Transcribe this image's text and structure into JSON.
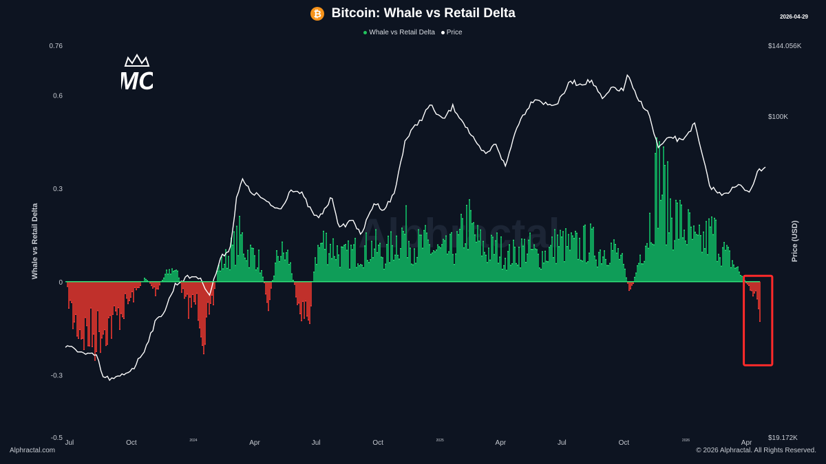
{
  "header": {
    "title": "Bitcoin: Whale vs Retail Delta",
    "date": "2026-04-29",
    "logo_letters": "MC"
  },
  "legend": [
    {
      "label": "Whale vs Retail Delta",
      "color": "#22c55e"
    },
    {
      "label": "Price",
      "color": "#ffffff"
    }
  ],
  "footer": {
    "left": "Alphractal.com",
    "right": "© 2026 Alphractal. All Rights Reserved."
  },
  "watermark": "Alphractal",
  "colors": {
    "background": "#0d1421",
    "positive": "#0f9d58",
    "positive_edge": "#2ee57a",
    "negative": "#c0302b",
    "negative_edge": "#ff4040",
    "price_line": "#ffffff",
    "highlight": "#ff2a2a"
  },
  "chart_data": {
    "type": "area",
    "title": "Bitcoin: Whale vs Retail Delta",
    "ylabel_left": "Whale vs Retail Delta",
    "ylabel_right": "Price (USD)",
    "x_range": [
      "2023-06-25",
      "2026-04-29"
    ],
    "x_ticks": [
      {
        "date": "2023-07-01",
        "label": "Jul",
        "small": false
      },
      {
        "date": "2023-10-01",
        "label": "Oct",
        "small": false
      },
      {
        "date": "2024-01-01",
        "label": "2024",
        "small": true
      },
      {
        "date": "2024-04-01",
        "label": "Apr",
        "small": false
      },
      {
        "date": "2024-07-01",
        "label": "Jul",
        "small": false
      },
      {
        "date": "2024-10-01",
        "label": "Oct",
        "small": false
      },
      {
        "date": "2025-01-01",
        "label": "2025",
        "small": true
      },
      {
        "date": "2025-04-01",
        "label": "Apr",
        "small": false
      },
      {
        "date": "2025-07-01",
        "label": "Jul",
        "small": false
      },
      {
        "date": "2025-10-01",
        "label": "Oct",
        "small": false
      },
      {
        "date": "2026-01-01",
        "label": "2026",
        "small": true
      },
      {
        "date": "2026-04-01",
        "label": "Apr",
        "small": false
      }
    ],
    "left_axis": {
      "range": [
        -0.5,
        0.76
      ],
      "ticks": [
        -0.5,
        -0.3,
        0,
        0.3,
        0.6,
        0.76
      ],
      "tick_labels": [
        "-0.5",
        "-0.3",
        "0",
        "0.3",
        "0.6",
        "0.76"
      ]
    },
    "right_axis": {
      "scale": "log",
      "range": [
        19172,
        144056
      ],
      "ticks": [
        19172,
        100000,
        144056
      ],
      "tick_labels": [
        "$19.172K",
        "$100K",
        "$144.056K"
      ]
    },
    "series": [
      {
        "name": "Whale vs Retail Delta",
        "x": [
          "2023-06-25",
          "2023-07-05",
          "2023-07-20",
          "2023-08-05",
          "2023-08-20",
          "2023-09-05",
          "2023-09-20",
          "2023-10-05",
          "2023-10-20",
          "2023-11-05",
          "2023-11-20",
          "2023-12-05",
          "2023-12-20",
          "2024-01-05",
          "2024-01-15",
          "2024-01-25",
          "2024-02-05",
          "2024-02-20",
          "2024-03-01",
          "2024-03-10",
          "2024-03-20",
          "2024-04-05",
          "2024-04-20",
          "2024-05-05",
          "2024-05-20",
          "2024-06-01",
          "2024-06-10",
          "2024-06-20",
          "2024-06-28",
          "2024-07-10",
          "2024-07-25",
          "2024-08-10",
          "2024-08-25",
          "2024-09-10",
          "2024-09-25",
          "2024-10-10",
          "2024-10-25",
          "2024-11-10",
          "2024-11-25",
          "2024-12-10",
          "2024-12-25",
          "2025-01-10",
          "2025-01-25",
          "2025-02-10",
          "2025-02-25",
          "2025-03-10",
          "2025-03-25",
          "2025-04-10",
          "2025-04-25",
          "2025-05-10",
          "2025-05-25",
          "2025-06-10",
          "2025-06-25",
          "2025-07-10",
          "2025-07-25",
          "2025-08-10",
          "2025-08-25",
          "2025-09-10",
          "2025-09-25",
          "2025-10-10",
          "2025-10-25",
          "2025-11-05",
          "2025-11-20",
          "2025-12-05",
          "2025-12-20",
          "2026-01-05",
          "2026-01-15",
          "2026-01-25",
          "2026-02-10",
          "2026-02-25",
          "2026-03-10",
          "2026-03-25",
          "2026-04-05",
          "2026-04-15",
          "2026-04-22",
          "2026-04-29"
        ],
        "values": [
          -0.02,
          -0.15,
          -0.2,
          -0.22,
          -0.18,
          -0.16,
          -0.1,
          -0.05,
          0.02,
          -0.04,
          0.03,
          0.06,
          -0.1,
          -0.08,
          -0.2,
          -0.18,
          0.05,
          0.1,
          0.14,
          0.18,
          0.12,
          0.1,
          -0.08,
          0.12,
          0.1,
          -0.05,
          -0.12,
          -0.15,
          0.1,
          0.16,
          0.14,
          0.1,
          0.12,
          0.13,
          0.14,
          0.1,
          0.16,
          0.2,
          0.14,
          0.15,
          0.12,
          0.12,
          0.14,
          0.24,
          0.16,
          0.12,
          0.14,
          0.1,
          0.12,
          0.14,
          0.1,
          0.12,
          0.16,
          0.14,
          0.14,
          0.16,
          0.12,
          0.14,
          0.1,
          -0.05,
          0.12,
          0.2,
          0.45,
          0.3,
          0.24,
          0.2,
          0.14,
          0.16,
          0.2,
          0.12,
          0.08,
          0.02,
          -0.03,
          -0.05,
          -0.18,
          -0.22
        ]
      },
      {
        "name": "Price",
        "x": [
          "2023-06-25",
          "2023-07-10",
          "2023-07-25",
          "2023-08-10",
          "2023-08-20",
          "2023-09-05",
          "2023-09-20",
          "2023-10-05",
          "2023-10-20",
          "2023-11-05",
          "2023-11-20",
          "2023-12-05",
          "2023-12-20",
          "2024-01-05",
          "2024-01-15",
          "2024-01-25",
          "2024-02-10",
          "2024-02-25",
          "2024-03-05",
          "2024-03-14",
          "2024-03-25",
          "2024-04-10",
          "2024-04-25",
          "2024-05-10",
          "2024-05-25",
          "2024-06-10",
          "2024-06-25",
          "2024-07-05",
          "2024-07-25",
          "2024-08-05",
          "2024-08-25",
          "2024-09-05",
          "2024-09-25",
          "2024-10-10",
          "2024-10-25",
          "2024-11-10",
          "2024-11-25",
          "2024-12-05",
          "2024-12-17",
          "2025-01-05",
          "2025-01-20",
          "2025-02-05",
          "2025-02-25",
          "2025-03-10",
          "2025-03-25",
          "2025-04-08",
          "2025-04-25",
          "2025-05-10",
          "2025-05-22",
          "2025-06-10",
          "2025-06-25",
          "2025-07-14",
          "2025-07-25",
          "2025-08-14",
          "2025-08-30",
          "2025-09-15",
          "2025-09-30",
          "2025-10-06",
          "2025-10-20",
          "2025-11-05",
          "2025-11-21",
          "2025-12-10",
          "2025-12-25",
          "2026-01-14",
          "2026-02-05",
          "2026-02-20",
          "2026-03-05",
          "2026-03-20",
          "2026-04-05",
          "2026-04-20",
          "2026-04-29"
        ],
        "values": [
          30500,
          30200,
          29300,
          29200,
          26100,
          25800,
          26500,
          27500,
          30000,
          34500,
          37000,
          42000,
          43500,
          44000,
          42500,
          40000,
          48000,
          51000,
          66000,
          72000,
          68000,
          66000,
          63000,
          62000,
          69000,
          67000,
          61000,
          59000,
          66000,
          56000,
          59000,
          54000,
          64000,
          62000,
          67000,
          88000,
          95000,
          99000,
          106000,
          98000,
          105000,
          97000,
          86000,
          82000,
          87000,
          77000,
          95000,
          104000,
          110000,
          106000,
          107000,
          120000,
          118000,
          120000,
          109000,
          116000,
          114000,
          124000,
          110000,
          103000,
          85000,
          90000,
          88000,
          96000,
          70000,
          67000,
          68000,
          70000,
          68000,
          76000,
          77000
        ]
      }
    ],
    "annotations": [
      {
        "type": "highlight-box",
        "x_range": [
          "2026-04-01",
          "2026-05-05"
        ],
        "y_range": [
          -0.26,
          0.01
        ]
      }
    ],
    "grid": false,
    "legend_position": "top-center"
  }
}
